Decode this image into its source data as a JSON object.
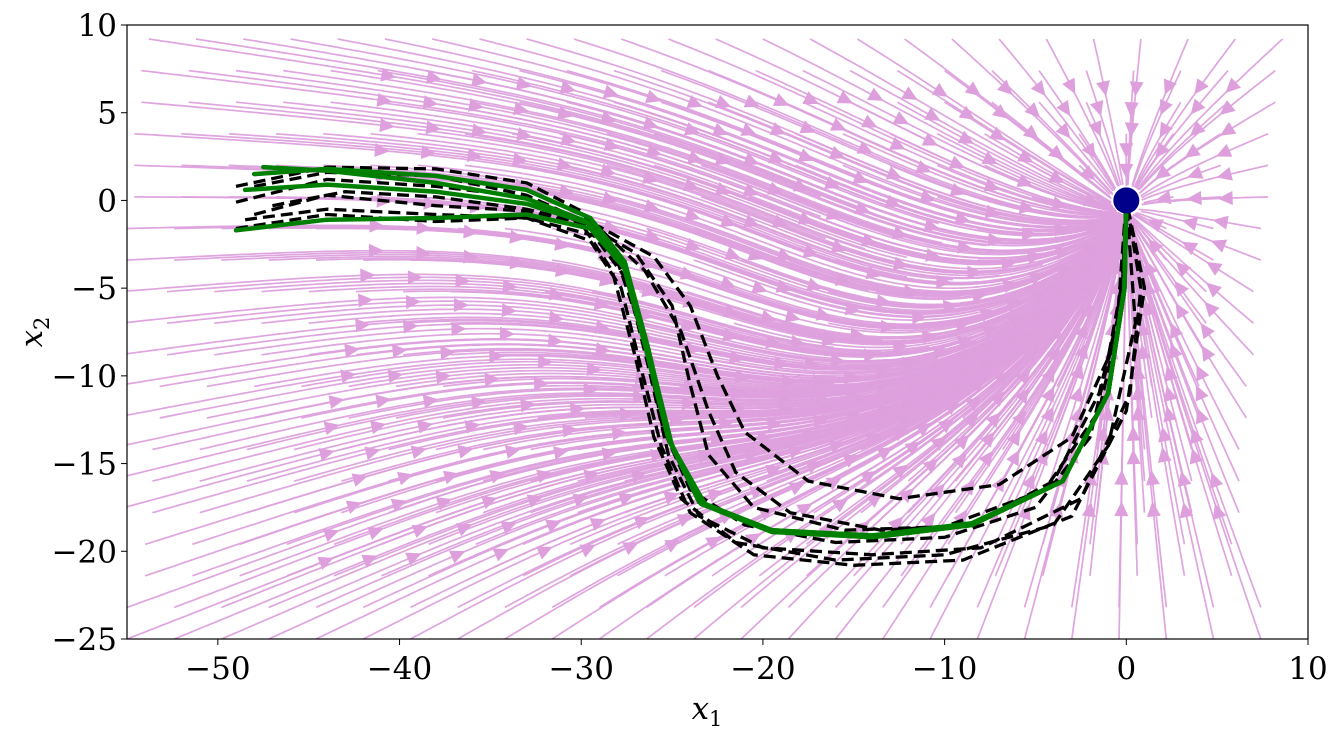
{
  "chart_data": {
    "type": "line",
    "title": "",
    "xlabel": "x",
    "xlabel_sub": "1",
    "ylabel": "x",
    "ylabel_sub": "2",
    "xlim": [
      -55,
      10
    ],
    "ylim": [
      -25,
      10
    ],
    "xticks": [
      -50,
      -40,
      -30,
      -20,
      -10,
      0,
      10
    ],
    "yticks": [
      10,
      5,
      0,
      -5,
      -10,
      -15,
      -20,
      -25
    ],
    "xtick_labels": [
      "−50",
      "−40",
      "−30",
      "−20",
      "−10",
      "0",
      "10"
    ],
    "ytick_labels": [
      "10",
      "5",
      "0",
      "−5",
      "−10",
      "−15",
      "−20",
      "−25"
    ],
    "grid": false,
    "legend": "none",
    "colors": {
      "streamlines": "#dda0dd",
      "demonstrations": "#000000",
      "reproduction": "#008000",
      "target": "#00008b"
    },
    "target_point": {
      "x": 0,
      "y": 0
    },
    "demonstrations": [
      [
        [
          -49,
          0.8
        ],
        [
          -44,
          1.9
        ],
        [
          -38,
          1.8
        ],
        [
          -33,
          1.0
        ],
        [
          -30,
          -0.6
        ],
        [
          -28,
          -3.5
        ],
        [
          -26.5,
          -8
        ],
        [
          -25.5,
          -13
        ],
        [
          -24,
          -16.5
        ],
        [
          -21,
          -18.5
        ],
        [
          -16,
          -19.5
        ],
        [
          -10,
          -19.2
        ],
        [
          -5,
          -17.5
        ],
        [
          -2,
          -13.5
        ],
        [
          -0.5,
          -7
        ],
        [
          0,
          0
        ]
      ],
      [
        [
          -49,
          -0.1
        ],
        [
          -44,
          1.2
        ],
        [
          -38,
          0.8
        ],
        [
          -33,
          0.2
        ],
        [
          -30,
          -1.3
        ],
        [
          -28.3,
          -4
        ],
        [
          -27,
          -9
        ],
        [
          -26,
          -13.5
        ],
        [
          -24.5,
          -17
        ],
        [
          -21.5,
          -19.5
        ],
        [
          -16,
          -20.5
        ],
        [
          -10,
          -20.2
        ],
        [
          -4,
          -18.5
        ],
        [
          -1,
          -14
        ],
        [
          0.5,
          -7
        ],
        [
          0,
          0
        ]
      ],
      [
        [
          -49,
          -1.6
        ],
        [
          -44,
          -0.8
        ],
        [
          -38,
          -1.2
        ],
        [
          -33,
          -1.0
        ],
        [
          -29.5,
          -2.3
        ],
        [
          -27.8,
          -5
        ],
        [
          -26.6,
          -10
        ],
        [
          -25.6,
          -14
        ],
        [
          -24,
          -17.8
        ],
        [
          -20.5,
          -20.2
        ],
        [
          -15,
          -20.8
        ],
        [
          -9,
          -20.5
        ],
        [
          -3,
          -18
        ],
        [
          0,
          -12
        ],
        [
          1,
          -5
        ],
        [
          0,
          0
        ]
      ],
      [
        [
          -48,
          0.8
        ],
        [
          -44,
          1.6
        ],
        [
          -38,
          1.4
        ],
        [
          -33,
          0.3
        ],
        [
          -29,
          -1.6
        ],
        [
          -26.5,
          -4
        ],
        [
          -24.5,
          -7.5
        ],
        [
          -23,
          -12
        ],
        [
          -21.5,
          -15.5
        ],
        [
          -18.5,
          -17.8
        ],
        [
          -13.5,
          -18.8
        ],
        [
          -8.5,
          -18.5
        ],
        [
          -4,
          -16
        ],
        [
          -1.5,
          -11
        ],
        [
          -0.3,
          -6
        ],
        [
          0,
          0
        ]
      ],
      [
        [
          -48,
          -0.8
        ],
        [
          -44,
          0.3
        ],
        [
          -38,
          -0.3
        ],
        [
          -33,
          -0.6
        ],
        [
          -29.5,
          -1.5
        ],
        [
          -27,
          -3
        ],
        [
          -25,
          -6
        ],
        [
          -24,
          -10.5
        ],
        [
          -23,
          -14.5
        ],
        [
          -20.5,
          -17.5
        ],
        [
          -15.5,
          -18.8
        ],
        [
          -10,
          -18.6
        ],
        [
          -4.5,
          -16.5
        ],
        [
          -1.5,
          -12
        ],
        [
          -0.2,
          -6
        ],
        [
          0,
          0
        ]
      ],
      [
        [
          -47,
          -0.3
        ],
        [
          -43,
          0.5
        ],
        [
          -38,
          0.2
        ],
        [
          -33,
          -0.5
        ],
        [
          -29,
          -1.5
        ],
        [
          -26,
          -3.2
        ],
        [
          -24,
          -6
        ],
        [
          -22.5,
          -10
        ],
        [
          -21,
          -13.2
        ],
        [
          -17.5,
          -16
        ],
        [
          -12.5,
          -17
        ],
        [
          -7,
          -16.2
        ],
        [
          -3,
          -13.5
        ],
        [
          -1,
          -9
        ],
        [
          -0.2,
          -4.5
        ],
        [
          0,
          0
        ]
      ],
      [
        [
          -48.5,
          -1.1
        ],
        [
          -44,
          -0.5
        ],
        [
          -38,
          -0.8
        ],
        [
          -33,
          -1.0
        ],
        [
          -29.3,
          -2
        ],
        [
          -27.5,
          -4.5
        ],
        [
          -26.3,
          -9.5
        ],
        [
          -25.2,
          -14.5
        ],
        [
          -23.5,
          -18
        ],
        [
          -20,
          -19.8
        ],
        [
          -14,
          -20.2
        ],
        [
          -8,
          -19.8
        ],
        [
          -2.5,
          -17
        ],
        [
          0.2,
          -11
        ],
        [
          0.8,
          -5
        ],
        [
          0,
          0
        ]
      ]
    ],
    "reproductions": [
      [
        [
          -49,
          -1.7
        ],
        [
          -44,
          -1.1
        ],
        [
          -38,
          -1.0
        ],
        [
          -33,
          -0.8
        ],
        [
          -29.5,
          -1.6
        ],
        [
          -27.5,
          -4
        ],
        [
          -26.2,
          -9
        ],
        [
          -25,
          -14
        ],
        [
          -23.2,
          -17.3
        ],
        [
          -19.5,
          -18.8
        ],
        [
          -14,
          -19.1
        ],
        [
          -8.5,
          -18.5
        ],
        [
          -3.5,
          -16
        ],
        [
          -1,
          -11
        ],
        [
          -0.1,
          -5
        ],
        [
          0,
          0
        ]
      ],
      [
        [
          -48,
          1.5
        ],
        [
          -44,
          1.8
        ],
        [
          -38,
          1.4
        ],
        [
          -33,
          0.6
        ],
        [
          -29.5,
          -1.0
        ],
        [
          -27.6,
          -3.5
        ],
        [
          -26.3,
          -8.5
        ],
        [
          -25.2,
          -13.5
        ],
        [
          -23.5,
          -17.2
        ],
        [
          -19.5,
          -18.8
        ],
        [
          -14,
          -19.2
        ],
        [
          -8.5,
          -18.5
        ],
        [
          -3.5,
          -16
        ],
        [
          -1,
          -11
        ],
        [
          -0.1,
          -5
        ],
        [
          0,
          0
        ]
      ],
      [
        [
          -48.5,
          0.6
        ],
        [
          -44,
          0.9
        ],
        [
          -38,
          0.5
        ],
        [
          -33,
          -0.2
        ],
        [
          -29.6,
          -1.3
        ],
        [
          -27.6,
          -3.8
        ],
        [
          -26.3,
          -8.8
        ],
        [
          -25.1,
          -13.8
        ],
        [
          -23.4,
          -17.3
        ],
        [
          -19.5,
          -18.9
        ],
        [
          -14,
          -19.2
        ],
        [
          -8.5,
          -18.5
        ],
        [
          -3.5,
          -16
        ],
        [
          -1,
          -11
        ],
        [
          -0.1,
          -5
        ],
        [
          0,
          0
        ]
      ],
      [
        [
          -47.5,
          1.9
        ],
        [
          -44,
          1.7
        ],
        [
          -38,
          1.0
        ],
        [
          -33,
          0.1
        ],
        [
          -29.7,
          -1.2
        ],
        [
          -27.7,
          -3.6
        ],
        [
          -26.4,
          -8.6
        ],
        [
          -25.2,
          -13.6
        ],
        [
          -23.5,
          -17.2
        ],
        [
          -19.6,
          -18.8
        ],
        [
          -14,
          -19.1
        ],
        [
          -8.5,
          -18.4
        ],
        [
          -3.5,
          -16
        ],
        [
          -1,
          -11
        ],
        [
          -0.1,
          -5
        ],
        [
          0,
          0
        ]
      ]
    ]
  }
}
